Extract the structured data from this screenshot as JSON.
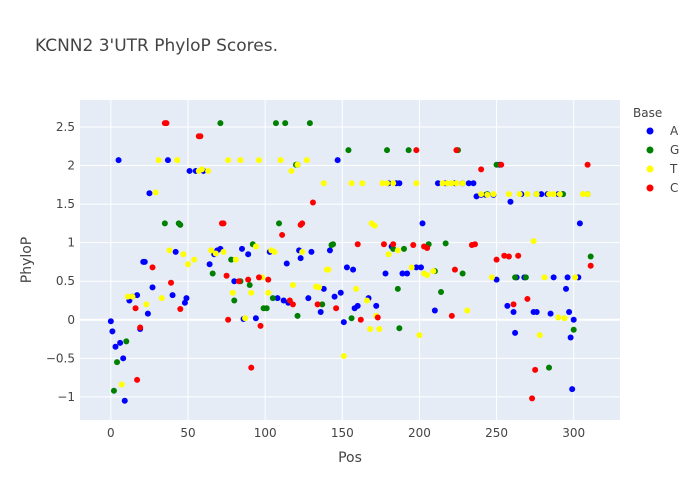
{
  "chart_data": {
    "type": "scatter",
    "title": "KCNN2 3'UTR PhyloP Scores.",
    "xlabel": "Pos",
    "ylabel": "PhyloP",
    "xlim": [
      -20,
      330
    ],
    "ylim": [
      -1.3,
      2.85
    ],
    "xticks": [
      0,
      50,
      100,
      150,
      200,
      250,
      300
    ],
    "yticks": [
      -1,
      -0.5,
      0,
      0.5,
      1,
      1.5,
      2,
      2.5
    ],
    "ytick_labels": [
      "−1",
      "−0.5",
      "0",
      "0.5",
      "1",
      "1.5",
      "2",
      "2.5"
    ],
    "grid": true,
    "legend": {
      "title": "Base",
      "placement": "right"
    },
    "series": [
      {
        "name": "A",
        "color": "#0000ff",
        "points": [
          [
            0,
            -0.02
          ],
          [
            1,
            -0.15
          ],
          [
            3,
            -0.35
          ],
          [
            5,
            2.07
          ],
          [
            6,
            -0.3
          ],
          [
            8,
            -0.5
          ],
          [
            9,
            -1.05
          ],
          [
            12,
            0.25
          ],
          [
            14,
            0.3
          ],
          [
            17,
            0.32
          ],
          [
            19,
            -0.12
          ],
          [
            21,
            0.75
          ],
          [
            22,
            0.75
          ],
          [
            24,
            0.08
          ],
          [
            25,
            1.64
          ],
          [
            27,
            0.42
          ],
          [
            37,
            2.07
          ],
          [
            40,
            0.32
          ],
          [
            42,
            0.88
          ],
          [
            48,
            0.22
          ],
          [
            49,
            0.28
          ],
          [
            51,
            1.93
          ],
          [
            55,
            1.93
          ],
          [
            60,
            1.93
          ],
          [
            64,
            0.72
          ],
          [
            67,
            0.85
          ],
          [
            69,
            0.9
          ],
          [
            71,
            0.92
          ],
          [
            80,
            0.5
          ],
          [
            85,
            0.92
          ],
          [
            86,
            0.01
          ],
          [
            89,
            0.85
          ],
          [
            94,
            0.02
          ],
          [
            103,
            0.88
          ],
          [
            108,
            0.28
          ],
          [
            112,
            0.25
          ],
          [
            114,
            0.73
          ],
          [
            115,
            0.22
          ],
          [
            122,
            0.9
          ],
          [
            123,
            0.8
          ],
          [
            128,
            0.28
          ],
          [
            130,
            0.88
          ],
          [
            136,
            0.1
          ],
          [
            138,
            0.4
          ],
          [
            142,
            0.9
          ],
          [
            145,
            0.3
          ],
          [
            147,
            2.07
          ],
          [
            149,
            0.35
          ],
          [
            151,
            -0.03
          ],
          [
            153,
            0.68
          ],
          [
            157,
            0.65
          ],
          [
            158,
            0.15
          ],
          [
            160,
            0.18
          ],
          [
            167,
            0.28
          ],
          [
            172,
            0.18
          ],
          [
            178,
            0.6
          ],
          [
            180,
            1.77
          ],
          [
            182,
            0.95
          ],
          [
            185,
            1.77
          ],
          [
            187,
            1.77
          ],
          [
            189,
            0.6
          ],
          [
            192,
            0.6
          ],
          [
            198,
            0.68
          ],
          [
            201,
            0.68
          ],
          [
            202,
            1.25
          ],
          [
            210,
            0.12
          ],
          [
            212,
            1.77
          ],
          [
            217,
            1.77
          ],
          [
            223,
            1.77
          ],
          [
            228,
            1.77
          ],
          [
            232,
            1.77
          ],
          [
            235,
            1.77
          ],
          [
            237,
            1.6
          ],
          [
            240,
            1.62
          ],
          [
            243,
            1.62
          ],
          [
            248,
            1.62
          ],
          [
            250,
            0.52
          ],
          [
            252,
            2.01
          ],
          [
            257,
            0.18
          ],
          [
            259,
            1.53
          ],
          [
            261,
            0.1
          ],
          [
            262,
            -0.17
          ],
          [
            263,
            0.55
          ],
          [
            266,
            1.63
          ],
          [
            268,
            0.55
          ],
          [
            274,
            0.1
          ],
          [
            276,
            0.1
          ],
          [
            279,
            1.63
          ],
          [
            283,
            1.63
          ],
          [
            285,
            0.08
          ],
          [
            287,
            0.55
          ],
          [
            290,
            1.63
          ],
          [
            293,
            1.63
          ],
          [
            295,
            0.4
          ],
          [
            296,
            0.55
          ],
          [
            297,
            0.1
          ],
          [
            298,
            -0.23
          ],
          [
            299,
            -0.9
          ],
          [
            300,
            0.0
          ],
          [
            303,
            0.55
          ],
          [
            304,
            1.25
          ]
        ]
      },
      {
        "name": "G",
        "color": "#008000",
        "points": [
          [
            2,
            -0.92
          ],
          [
            4,
            -0.55
          ],
          [
            10,
            -0.28
          ],
          [
            35,
            1.25
          ],
          [
            44,
            1.25
          ],
          [
            45,
            1.23
          ],
          [
            66,
            0.6
          ],
          [
            71,
            2.55
          ],
          [
            78,
            0.78
          ],
          [
            80,
            0.25
          ],
          [
            84,
            0.5
          ],
          [
            90,
            0.45
          ],
          [
            92,
            0.98
          ],
          [
            99,
            0.15
          ],
          [
            101,
            0.15
          ],
          [
            105,
            0.28
          ],
          [
            107,
            2.55
          ],
          [
            109,
            1.25
          ],
          [
            113,
            2.55
          ],
          [
            120,
            2.01
          ],
          [
            121,
            2.01
          ],
          [
            121,
            0.05
          ],
          [
            129,
            2.55
          ],
          [
            137,
            0.2
          ],
          [
            143,
            0.97
          ],
          [
            144,
            0.98
          ],
          [
            154,
            2.2
          ],
          [
            156,
            0.02
          ],
          [
            179,
            2.2
          ],
          [
            183,
            0.92
          ],
          [
            186,
            0.4
          ],
          [
            187,
            -0.11
          ],
          [
            190,
            0.92
          ],
          [
            193,
            2.2
          ],
          [
            206,
            0.98
          ],
          [
            210,
            0.63
          ],
          [
            214,
            0.36
          ],
          [
            217,
            0.99
          ],
          [
            225,
            2.2
          ],
          [
            228,
            0.6
          ],
          [
            244,
            1.63
          ],
          [
            250,
            2.01
          ],
          [
            262,
            0.55
          ],
          [
            269,
            0.55
          ],
          [
            276,
            1.63
          ],
          [
            284,
            -0.62
          ],
          [
            293,
            1.63
          ],
          [
            300,
            -0.13
          ],
          [
            309,
            1.63
          ],
          [
            311,
            0.82
          ]
        ]
      },
      {
        "name": "T",
        "color": "#ffff00",
        "points": [
          [
            7,
            -0.84
          ],
          [
            11,
            0.3
          ],
          [
            14,
            0.3
          ],
          [
            23,
            0.2
          ],
          [
            29,
            1.65
          ],
          [
            31,
            2.07
          ],
          [
            33,
            0.28
          ],
          [
            38,
            0.9
          ],
          [
            43,
            2.07
          ],
          [
            47,
            0.85
          ],
          [
            50,
            0.72
          ],
          [
            54,
            0.78
          ],
          [
            57,
            1.93
          ],
          [
            59,
            1.95
          ],
          [
            63,
            1.93
          ],
          [
            65,
            0.9
          ],
          [
            68,
            0.86
          ],
          [
            73,
            0.88
          ],
          [
            76,
            2.07
          ],
          [
            79,
            0.35
          ],
          [
            81,
            0.78
          ],
          [
            84,
            2.07
          ],
          [
            87,
            0.02
          ],
          [
            91,
            0.35
          ],
          [
            94,
            0.95
          ],
          [
            96,
            2.07
          ],
          [
            98,
            0.55
          ],
          [
            102,
            0.35
          ],
          [
            104,
            0.9
          ],
          [
            106,
            0.88
          ],
          [
            110,
            2.07
          ],
          [
            117,
            1.93
          ],
          [
            118,
            0.45
          ],
          [
            121,
            2.01
          ],
          [
            124,
            0.88
          ],
          [
            127,
            2.07
          ],
          [
            133,
            0.43
          ],
          [
            135,
            0.42
          ],
          [
            138,
            1.77
          ],
          [
            140,
            0.65
          ],
          [
            141,
            0.65
          ],
          [
            151,
            -0.47
          ],
          [
            156,
            1.77
          ],
          [
            159,
            0.4
          ],
          [
            163,
            1.77
          ],
          [
            166,
            0.25
          ],
          [
            168,
            -0.12
          ],
          [
            169,
            1.25
          ],
          [
            171,
            1.22
          ],
          [
            172,
            0.05
          ],
          [
            174,
            -0.12
          ],
          [
            176,
            1.77
          ],
          [
            179,
            1.77
          ],
          [
            180,
            0.85
          ],
          [
            183,
            1.77
          ],
          [
            186,
            0.9
          ],
          [
            195,
            0.68
          ],
          [
            198,
            1.77
          ],
          [
            200,
            -0.2
          ],
          [
            203,
            0.6
          ],
          [
            205,
            0.58
          ],
          [
            209,
            0.63
          ],
          [
            215,
            1.77
          ],
          [
            218,
            1.77
          ],
          [
            221,
            1.77
          ],
          [
            224,
            1.77
          ],
          [
            228,
            1.77
          ],
          [
            231,
            0.12
          ],
          [
            240,
            1.63
          ],
          [
            244,
            1.62
          ],
          [
            247,
            0.55
          ],
          [
            248,
            1.63
          ],
          [
            258,
            1.63
          ],
          [
            265,
            1.63
          ],
          [
            270,
            1.63
          ],
          [
            274,
            1.02
          ],
          [
            276,
            1.63
          ],
          [
            278,
            -0.2
          ],
          [
            281,
            0.55
          ],
          [
            284,
            1.63
          ],
          [
            287,
            1.63
          ],
          [
            290,
            0.03
          ],
          [
            291,
            1.63
          ],
          [
            294,
            0.02
          ],
          [
            301,
            0.55
          ],
          [
            306,
            1.63
          ],
          [
            309,
            1.63
          ]
        ]
      },
      {
        "name": "C",
        "color": "#ff0000",
        "points": [
          [
            16,
            0.15
          ],
          [
            17,
            -0.78
          ],
          [
            19,
            -0.1
          ],
          [
            27,
            0.68
          ],
          [
            35,
            2.55
          ],
          [
            36,
            2.55
          ],
          [
            39,
            0.48
          ],
          [
            45,
            0.14
          ],
          [
            57,
            2.38
          ],
          [
            58,
            2.38
          ],
          [
            72,
            1.25
          ],
          [
            73,
            1.25
          ],
          [
            75,
            0.57
          ],
          [
            76,
            0.0
          ],
          [
            83,
            0.5
          ],
          [
            89,
            0.52
          ],
          [
            91,
            -0.62
          ],
          [
            96,
            0.55
          ],
          [
            97,
            -0.08
          ],
          [
            102,
            0.52
          ],
          [
            111,
            1.1
          ],
          [
            116,
            0.25
          ],
          [
            118,
            0.2
          ],
          [
            123,
            1.23
          ],
          [
            124,
            1.25
          ],
          [
            131,
            1.52
          ],
          [
            134,
            0.2
          ],
          [
            146,
            0.15
          ],
          [
            160,
            0.98
          ],
          [
            162,
            0.0
          ],
          [
            173,
            0.03
          ],
          [
            177,
            0.98
          ],
          [
            183,
            0.98
          ],
          [
            196,
            0.97
          ],
          [
            198,
            2.2
          ],
          [
            203,
            0.95
          ],
          [
            205,
            0.93
          ],
          [
            221,
            0.05
          ],
          [
            223,
            0.65
          ],
          [
            224,
            2.2
          ],
          [
            234,
            0.97
          ],
          [
            236,
            0.98
          ],
          [
            240,
            1.95
          ],
          [
            250,
            0.78
          ],
          [
            253,
            2.01
          ],
          [
            255,
            0.83
          ],
          [
            258,
            0.82
          ],
          [
            261,
            0.2
          ],
          [
            264,
            0.83
          ],
          [
            270,
            0.27
          ],
          [
            273,
            -1.02
          ],
          [
            275,
            -0.65
          ],
          [
            309,
            2.01
          ],
          [
            311,
            0.7
          ]
        ]
      }
    ]
  }
}
